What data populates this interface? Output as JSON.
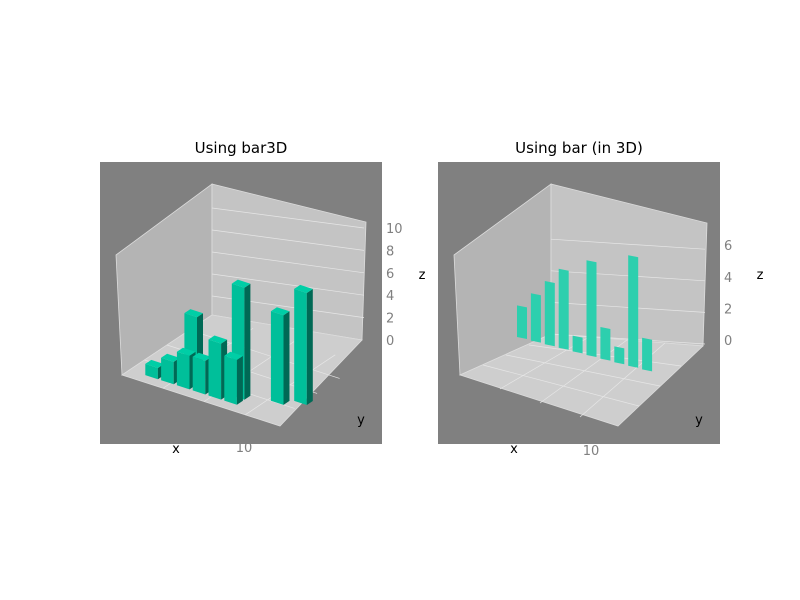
{
  "chart_data": [
    {
      "type": "bar3d",
      "title": "Using bar3D",
      "xlabel": "x",
      "ylabel": "y",
      "zlabel": "z",
      "zticks": [
        0,
        2,
        4,
        6,
        8,
        10
      ],
      "xticks": [
        10
      ],
      "zlim": [
        0,
        11.5
      ],
      "bar_color": "#00bf9a",
      "bars": [
        {
          "x": 1,
          "y": 1,
          "z": 1
        },
        {
          "x": 2,
          "y": 1,
          "z": 2
        },
        {
          "x": 3,
          "y": 1,
          "z": 3
        },
        {
          "x": 4,
          "y": 1,
          "z": 3
        },
        {
          "x": 5,
          "y": 1,
          "z": 5
        },
        {
          "x": 6,
          "y": 1,
          "z": 4
        },
        {
          "x": 3,
          "y": 2,
          "z": 6
        },
        {
          "x": 6,
          "y": 2,
          "z": 10
        },
        {
          "x": 8,
          "y": 3,
          "z": 8
        },
        {
          "x": 9,
          "y": 4,
          "z": 10
        }
      ]
    },
    {
      "type": "bar",
      "title": "Using bar (in 3D)",
      "xlabel": "x",
      "ylabel": "y",
      "zlabel": "z",
      "zticks": [
        0,
        2,
        4,
        6
      ],
      "xticks": [
        10
      ],
      "zlim": [
        -1,
        8
      ],
      "bar_color": "#2dcfae",
      "x": [
        1,
        2,
        3,
        4,
        5,
        6,
        7,
        8,
        9,
        10
      ],
      "values": [
        2,
        3,
        4,
        5,
        1,
        6,
        2,
        1,
        7,
        2
      ]
    }
  ]
}
